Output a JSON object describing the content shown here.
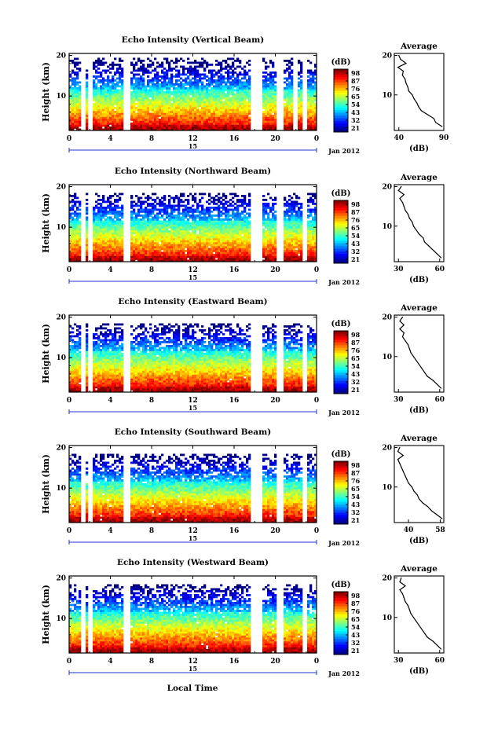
{
  "figure": {
    "xlabel": "Local Time",
    "date_label": "Jan 2012",
    "day_label": "15",
    "avg_title": "Average",
    "avg_xlabel": "(dB)",
    "cbar_unit": "(dB)",
    "ylabel": "Height (km)"
  },
  "chart_data": [
    {
      "type": "heatmap",
      "title": "Echo Intensity (Vertical Beam)",
      "xlabel": "Local Time",
      "ylabel": "Height (km)",
      "x_ticks": [
        "0",
        "4",
        "8",
        "12",
        "16",
        "20",
        "0"
      ],
      "xlim": [
        0,
        24
      ],
      "y_ticks": [
        "10",
        "20"
      ],
      "ylim": [
        1.5,
        20.5
      ],
      "colorbar": {
        "unit": "(dB)",
        "ticks": [
          "98",
          "87",
          "76",
          "65",
          "54",
          "43",
          "32",
          "21"
        ]
      },
      "gap_hours": [
        1.2,
        2.0,
        5.5,
        17.7,
        18.3,
        20.3,
        21.8,
        22.8
      ],
      "top_km": 19.5,
      "average_profile": {
        "title": "Average",
        "xlabel": "(dB)",
        "xlim": [
          35,
          90
        ],
        "x_ticks": [
          "40",
          "90"
        ],
        "y_ticks": [
          "10",
          "20"
        ],
        "height_km": [
          2,
          3,
          4,
          5,
          6,
          7,
          8,
          9,
          10,
          11,
          12,
          13,
          14,
          15,
          16,
          17,
          18,
          19,
          20
        ],
        "value_db": [
          88,
          81,
          79,
          72,
          65,
          62,
          60,
          57,
          55,
          51,
          50,
          48,
          47,
          44,
          45,
          39,
          48,
          42,
          40
        ]
      }
    },
    {
      "type": "heatmap",
      "title": "Echo Intensity (Northward Beam)",
      "xlabel": "Local Time",
      "ylabel": "Height (km)",
      "x_ticks": [
        "0",
        "4",
        "8",
        "12",
        "16",
        "20",
        "0"
      ],
      "xlim": [
        0,
        24
      ],
      "y_ticks": [
        "10",
        "20"
      ],
      "ylim": [
        1.5,
        20.5
      ],
      "colorbar": {
        "unit": "(dB)",
        "ticks": [
          "98",
          "87",
          "76",
          "65",
          "54",
          "43",
          "32",
          "21"
        ]
      },
      "gap_hours": [
        1.2,
        2.0,
        5.5,
        17.7,
        18.3,
        20.3,
        22.8
      ],
      "top_km": 18.5,
      "average_profile": {
        "title": "Average",
        "xlabel": "(dB)",
        "xlim": [
          27,
          63
        ],
        "x_ticks": [
          "30",
          "60"
        ],
        "y_ticks": [
          "10",
          "20"
        ],
        "height_km": [
          2,
          3,
          4,
          5,
          6,
          7,
          8,
          9,
          10,
          11,
          12,
          13,
          14,
          15,
          16,
          17,
          18,
          19,
          20
        ],
        "value_db": [
          61,
          58,
          55,
          52,
          49,
          48,
          45,
          43,
          41,
          40,
          38,
          37,
          35,
          34,
          33,
          31,
          34,
          30,
          32
        ]
      }
    },
    {
      "type": "heatmap",
      "title": "Echo Intensity (Eastward Beam)",
      "xlabel": "Local Time",
      "ylabel": "Height (km)",
      "x_ticks": [
        "0",
        "4",
        "8",
        "12",
        "16",
        "20",
        "0"
      ],
      "xlim": [
        0,
        24
      ],
      "y_ticks": [
        "10",
        "20"
      ],
      "ylim": [
        1.5,
        20.5
      ],
      "colorbar": {
        "unit": "(dB)",
        "ticks": [
          "98",
          "87",
          "76",
          "65",
          "54",
          "43",
          "32",
          "21"
        ]
      },
      "gap_hours": [
        1.2,
        2.0,
        5.5,
        17.7,
        18.3,
        20.3,
        22.8
      ],
      "top_km": 18.5,
      "average_profile": {
        "title": "Average",
        "xlabel": "(dB)",
        "xlim": [
          27,
          63
        ],
        "x_ticks": [
          "30",
          "60"
        ],
        "y_ticks": [
          "10",
          "20"
        ],
        "height_km": [
          2,
          3,
          4,
          5,
          6,
          7,
          8,
          9,
          10,
          11,
          12,
          13,
          14,
          15,
          16,
          17,
          18,
          19,
          20
        ],
        "value_db": [
          61,
          58,
          55,
          51,
          49,
          47,
          45,
          43,
          41,
          39,
          38,
          37,
          35,
          33,
          34,
          31,
          34,
          31,
          33
        ]
      }
    },
    {
      "type": "heatmap",
      "title": "Echo Intensity (Southward Beam)",
      "xlabel": "Local Time",
      "ylabel": "Height (km)",
      "x_ticks": [
        "0",
        "4",
        "8",
        "12",
        "16",
        "20",
        "0"
      ],
      "xlim": [
        0,
        24
      ],
      "y_ticks": [
        "10",
        "20"
      ],
      "ylim": [
        1.5,
        20.5
      ],
      "colorbar": {
        "unit": "(dB)",
        "ticks": [
          "98",
          "87",
          "76",
          "65",
          "54",
          "43",
          "32",
          "21"
        ]
      },
      "gap_hours": [
        1.2,
        2.0,
        5.5,
        17.7,
        18.3,
        20.3,
        22.8
      ],
      "top_km": 18.5,
      "average_profile": {
        "title": "Average",
        "xlabel": "(dB)",
        "xlim": [
          32,
          60
        ],
        "x_ticks": [
          "40",
          "58"
        ],
        "y_ticks": [
          "10",
          "20"
        ],
        "height_km": [
          2,
          3,
          4,
          5,
          6,
          7,
          8,
          9,
          10,
          11,
          12,
          13,
          14,
          15,
          16,
          17,
          18,
          19,
          20
        ],
        "value_db": [
          59,
          56,
          53,
          51,
          48,
          46,
          45,
          43,
          42,
          40,
          39,
          38,
          37,
          36,
          35,
          34,
          37,
          34,
          35
        ]
      }
    },
    {
      "type": "heatmap",
      "title": "Echo Intensity (Westward Beam)",
      "xlabel": "Local Time",
      "ylabel": "Height (km)",
      "x_ticks": [
        "0",
        "4",
        "8",
        "12",
        "16",
        "20",
        "0"
      ],
      "xlim": [
        0,
        24
      ],
      "y_ticks": [
        "10",
        "20"
      ],
      "ylim": [
        1.5,
        20.5
      ],
      "colorbar": {
        "unit": "(dB)",
        "ticks": [
          "98",
          "87",
          "76",
          "65",
          "54",
          "43",
          "32",
          "21"
        ]
      },
      "gap_hours": [
        1.2,
        2.0,
        5.5,
        17.7,
        18.3,
        20.3,
        22.8
      ],
      "top_km": 18.5,
      "average_profile": {
        "title": "Average",
        "xlabel": "(dB)",
        "xlim": [
          27,
          63
        ],
        "x_ticks": [
          "30",
          "60"
        ],
        "y_ticks": [
          "10",
          "20"
        ],
        "height_km": [
          2,
          3,
          4,
          5,
          6,
          7,
          8,
          9,
          10,
          11,
          12,
          13,
          14,
          15,
          16,
          17,
          18,
          19,
          20
        ],
        "value_db": [
          61,
          58,
          55,
          51,
          49,
          47,
          45,
          43,
          41,
          39,
          38,
          37,
          35,
          34,
          33,
          31,
          35,
          31,
          32
        ]
      }
    }
  ]
}
